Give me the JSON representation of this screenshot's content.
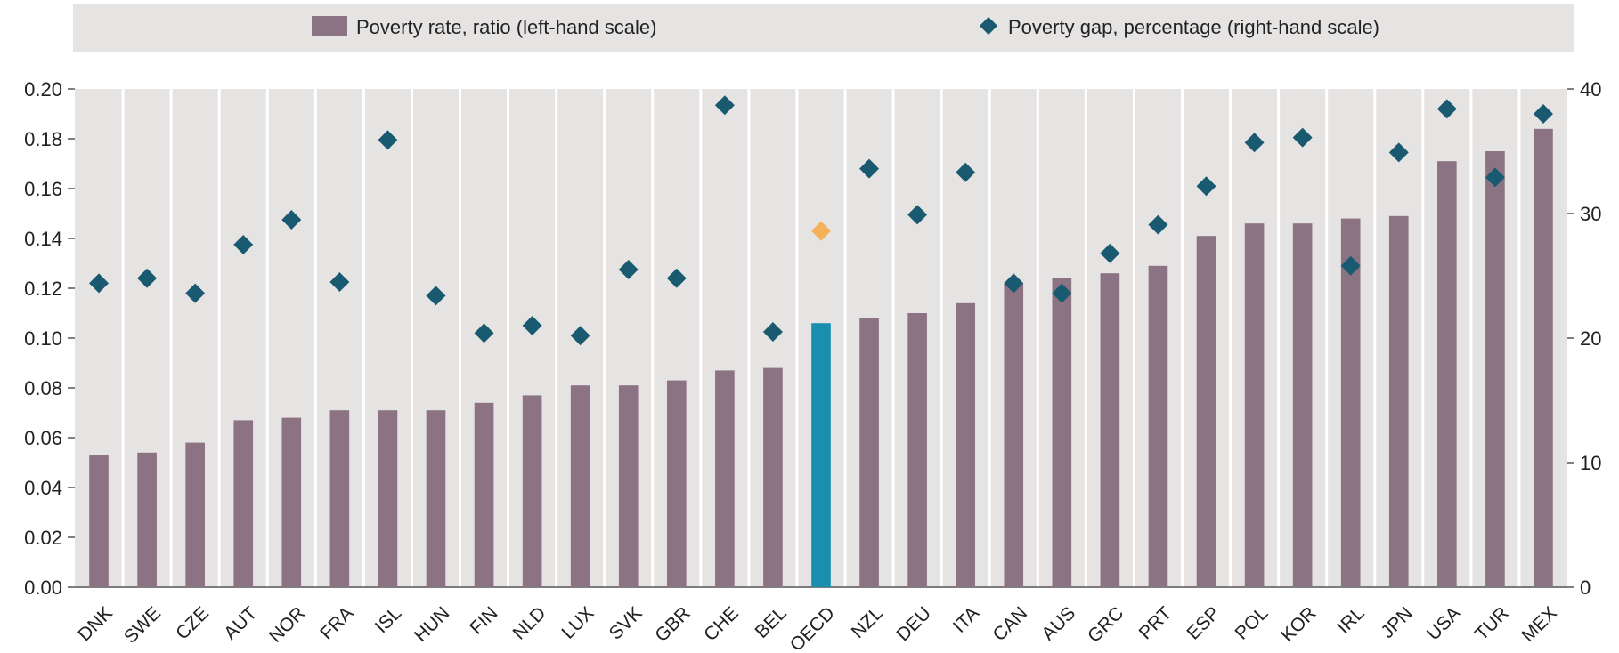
{
  "chart_data": {
    "type": "bar",
    "categories": [
      "DNK",
      "SWE",
      "CZE",
      "AUT",
      "NOR",
      "FRA",
      "ISL",
      "HUN",
      "FIN",
      "NLD",
      "LUX",
      "SVK",
      "GBR",
      "CHE",
      "BEL",
      "OECD",
      "NZL",
      "DEU",
      "ITA",
      "CAN",
      "AUS",
      "GRC",
      "PRT",
      "ESP",
      "POL",
      "KOR",
      "IRL",
      "JPN",
      "USA",
      "TUR",
      "MEX"
    ],
    "highlight_category": "OECD",
    "series": [
      {
        "name": "Poverty rate, ratio (left-hand scale)",
        "type": "bar",
        "axis": "left",
        "color": "#8c7383",
        "highlight_color": "#1a8fad",
        "values": [
          0.053,
          0.054,
          0.058,
          0.067,
          0.068,
          0.071,
          0.071,
          0.071,
          0.074,
          0.077,
          0.081,
          0.081,
          0.083,
          0.087,
          0.088,
          0.106,
          0.108,
          0.11,
          0.114,
          0.122,
          0.124,
          0.126,
          0.129,
          0.141,
          0.146,
          0.146,
          0.148,
          0.149,
          0.171,
          0.175,
          0.184
        ]
      },
      {
        "name": "Poverty gap, percentage (right-hand scale)",
        "type": "scatter",
        "marker": "diamond",
        "axis": "right",
        "color": "#1a5a70",
        "highlight_color": "#f5b05a",
        "values": [
          24.4,
          24.8,
          23.6,
          27.5,
          29.5,
          24.5,
          35.9,
          23.4,
          20.4,
          21.0,
          20.2,
          25.5,
          24.8,
          38.7,
          20.5,
          28.6,
          33.6,
          29.9,
          33.3,
          24.4,
          23.6,
          26.8,
          29.1,
          32.2,
          35.7,
          36.1,
          25.8,
          34.9,
          38.4,
          32.9,
          38.0
        ]
      }
    ],
    "y_left": {
      "ylim": [
        0,
        0.2
      ],
      "ticks": [
        "0.00",
        "0.02",
        "0.04",
        "0.06",
        "0.08",
        "0.10",
        "0.12",
        "0.14",
        "0.16",
        "0.18",
        "0.20"
      ]
    },
    "y_right": {
      "ylim": [
        0,
        40
      ],
      "ticks": [
        "0",
        "10",
        "20",
        "30",
        "40"
      ]
    },
    "legend_placement": "top",
    "grid": "vertical-separators"
  }
}
